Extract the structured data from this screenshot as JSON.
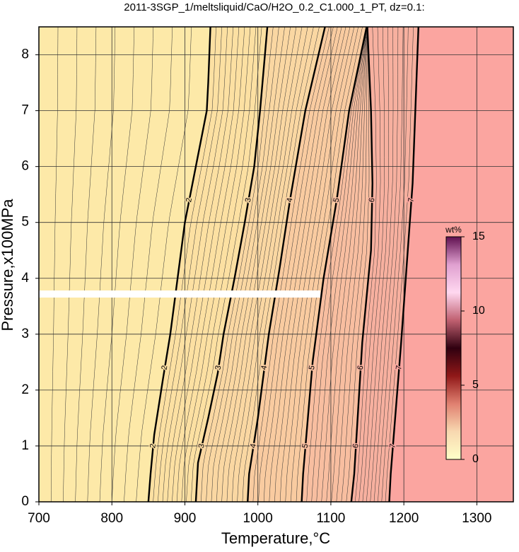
{
  "chart_data": {
    "type": "contour",
    "title": "2011-3SGP_1/meltsliquid/CaO/H2O_0.2_C1.000_1_PT, dz=0.1:",
    "x_label": "Temperature,°C",
    "y_label": "Pressure,x100MPa",
    "xlim": [
      700,
      1350
    ],
    "ylim": [
      0,
      8.5
    ],
    "xticks": [
      700,
      800,
      900,
      1000,
      1100,
      1200,
      1300
    ],
    "yticks": [
      0,
      1,
      2,
      3,
      4,
      5,
      6,
      7,
      8
    ],
    "grid": true,
    "background_color": "#fde9a8",
    "contours": [
      {
        "level": 2,
        "color": "#fce0a2",
        "x": [
          850,
          853,
          858,
          870,
          880,
          890,
          900,
          915,
          930,
          932,
          935
        ],
        "y": [
          0,
          0.5,
          1.2,
          2.2,
          3,
          4,
          5,
          6,
          7,
          7.5,
          8.5
        ]
      },
      {
        "level": 3,
        "color": "#fad7a2",
        "x": [
          915,
          918,
          932,
          945,
          953,
          968,
          982,
          995,
          1003,
          1013
        ],
        "y": [
          0,
          0.7,
          1.5,
          2.3,
          3,
          4,
          5,
          6,
          7,
          8.5
        ]
      },
      {
        "level": 4,
        "color": "#f9cba0",
        "x": [
          986,
          988,
          1000,
          1015,
          1030,
          1044,
          1065,
          1092
        ],
        "y": [
          0,
          0.5,
          1.5,
          3,
          4.2,
          5.4,
          7,
          8.5
        ]
      },
      {
        "level": 5,
        "color": "#f8bea0",
        "x": [
          1060,
          1062,
          1075,
          1090,
          1108,
          1125,
          1149
        ],
        "y": [
          0,
          0.5,
          2.5,
          4,
          5.4,
          7,
          8.5
        ]
      },
      {
        "level": 6,
        "color": "#f7b09f",
        "x": [
          1128,
          1132,
          1143,
          1155,
          1157,
          1155,
          1150
        ],
        "y": [
          0,
          0.5,
          2.85,
          4.5,
          5.7,
          7,
          8.5
        ]
      },
      {
        "level": 7,
        "color": "#fba5a0",
        "x": [
          1180,
          1182,
          1196,
          1212,
          1220
        ],
        "y": [
          0,
          0.5,
          2.8,
          5.7,
          8.5
        ]
      }
    ],
    "colorbar": {
      "label": "wt%",
      "lim": [
        0,
        15
      ],
      "ticks": [
        0,
        5,
        10,
        15
      ],
      "colors": [
        "#ffffc8",
        "#f8d8b0",
        "#e08070",
        "#901818",
        "#300010",
        "#c06070",
        "#ffd8f0",
        "#e0a0d0",
        "#601050"
      ]
    }
  }
}
